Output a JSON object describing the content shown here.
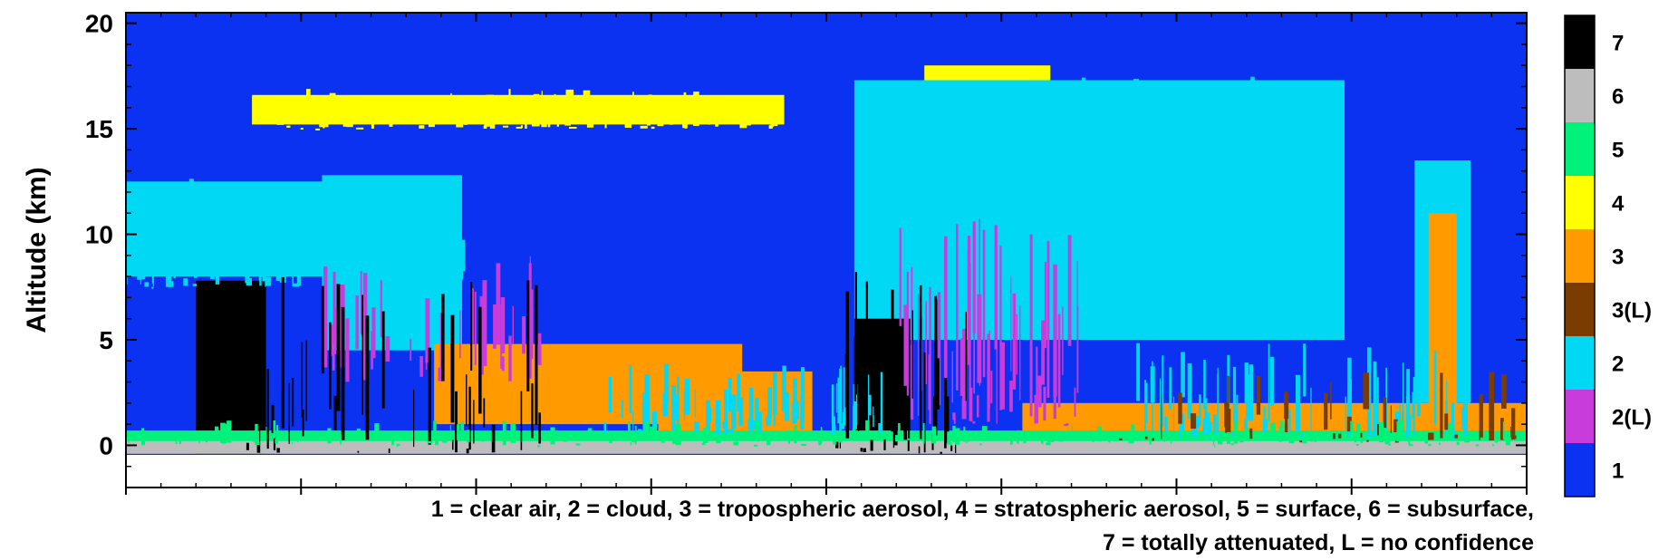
{
  "colors": {
    "clear_air": "#0a32f0",
    "cloud": "#00d8f4",
    "cloud_low": "#c83cdc",
    "trop_aerosol": "#ff9a00",
    "trop_aerosol_low": "#7a3c00",
    "strat_aerosol": "#ffff00",
    "surface": "#00f27a",
    "subsurface": "#bdbdbd",
    "attenuated": "#000000"
  },
  "chart_data": {
    "type": "heatmap",
    "ylabel": "Altitude (km)",
    "ylim": [
      -2,
      20.5
    ],
    "yticks": [
      0,
      5,
      10,
      15,
      20
    ],
    "yticks_labels": [
      "0",
      "5",
      "10",
      "15",
      "20"
    ],
    "xlim": [
      0,
      100
    ],
    "legend": {
      "placement": "right",
      "entries": [
        {
          "label": "7",
          "color": "#000000"
        },
        {
          "label": "6",
          "color": "#bdbdbd"
        },
        {
          "label": "5",
          "color": "#00f27a"
        },
        {
          "label": "4",
          "color": "#ffff00"
        },
        {
          "label": "3",
          "color": "#ff9a00"
        },
        {
          "label": "3(L)",
          "color": "#7a3c00"
        },
        {
          "label": "2",
          "color": "#00d8f4"
        },
        {
          "label": "2(L)",
          "color": "#c83cdc"
        },
        {
          "label": "1",
          "color": "#0a32f0"
        }
      ]
    },
    "regions": [
      {
        "class": "4",
        "x0": 9,
        "x1": 47,
        "y0": 15.2,
        "y1": 16.6
      },
      {
        "class": "4",
        "x0": 57,
        "x1": 66,
        "y0": 16.0,
        "y1": 18.0
      },
      {
        "class": "2",
        "x0": 0,
        "x1": 24,
        "y0": 8.0,
        "y1": 12.5
      },
      {
        "class": "2",
        "x0": 14,
        "x1": 24,
        "y0": 4.5,
        "y1": 12.8
      },
      {
        "class": "2",
        "x0": 52,
        "x1": 87,
        "y0": 5.0,
        "y1": 17.3
      },
      {
        "class": "2",
        "x0": 92,
        "x1": 96,
        "y0": 2.0,
        "y1": 13.5
      },
      {
        "class": "3",
        "x0": 22,
        "x1": 44,
        "y0": 1.0,
        "y1": 4.8
      },
      {
        "class": "3",
        "x0": 38,
        "x1": 49,
        "y0": 0.3,
        "y1": 3.5
      },
      {
        "class": "3",
        "x0": 64,
        "x1": 100,
        "y0": 0.2,
        "y1": 2.0
      },
      {
        "class": "3",
        "x0": 93,
        "x1": 95,
        "y0": 0.2,
        "y1": 11.0
      },
      {
        "class": "7",
        "x0": 5,
        "x1": 10,
        "y0": -0.4,
        "y1": 7.8
      },
      {
        "class": "7",
        "x0": 52,
        "x1": 56,
        "y0": -0.4,
        "y1": 6.0
      },
      {
        "class": "5",
        "x0": 0,
        "x1": 100,
        "y0": 0.0,
        "y1": 0.7
      },
      {
        "class": "6",
        "x0": 0,
        "x1": 100,
        "y0": -0.4,
        "y1": 0.2
      }
    ]
  },
  "caption": {
    "line1": "1 = clear air, 2 = cloud, 3 = tropospheric aerosol, 4 = stratospheric aerosol, 5 = surface, 6 = subsurface,",
    "line2": "7 = totally attenuated, L = no confidence"
  }
}
